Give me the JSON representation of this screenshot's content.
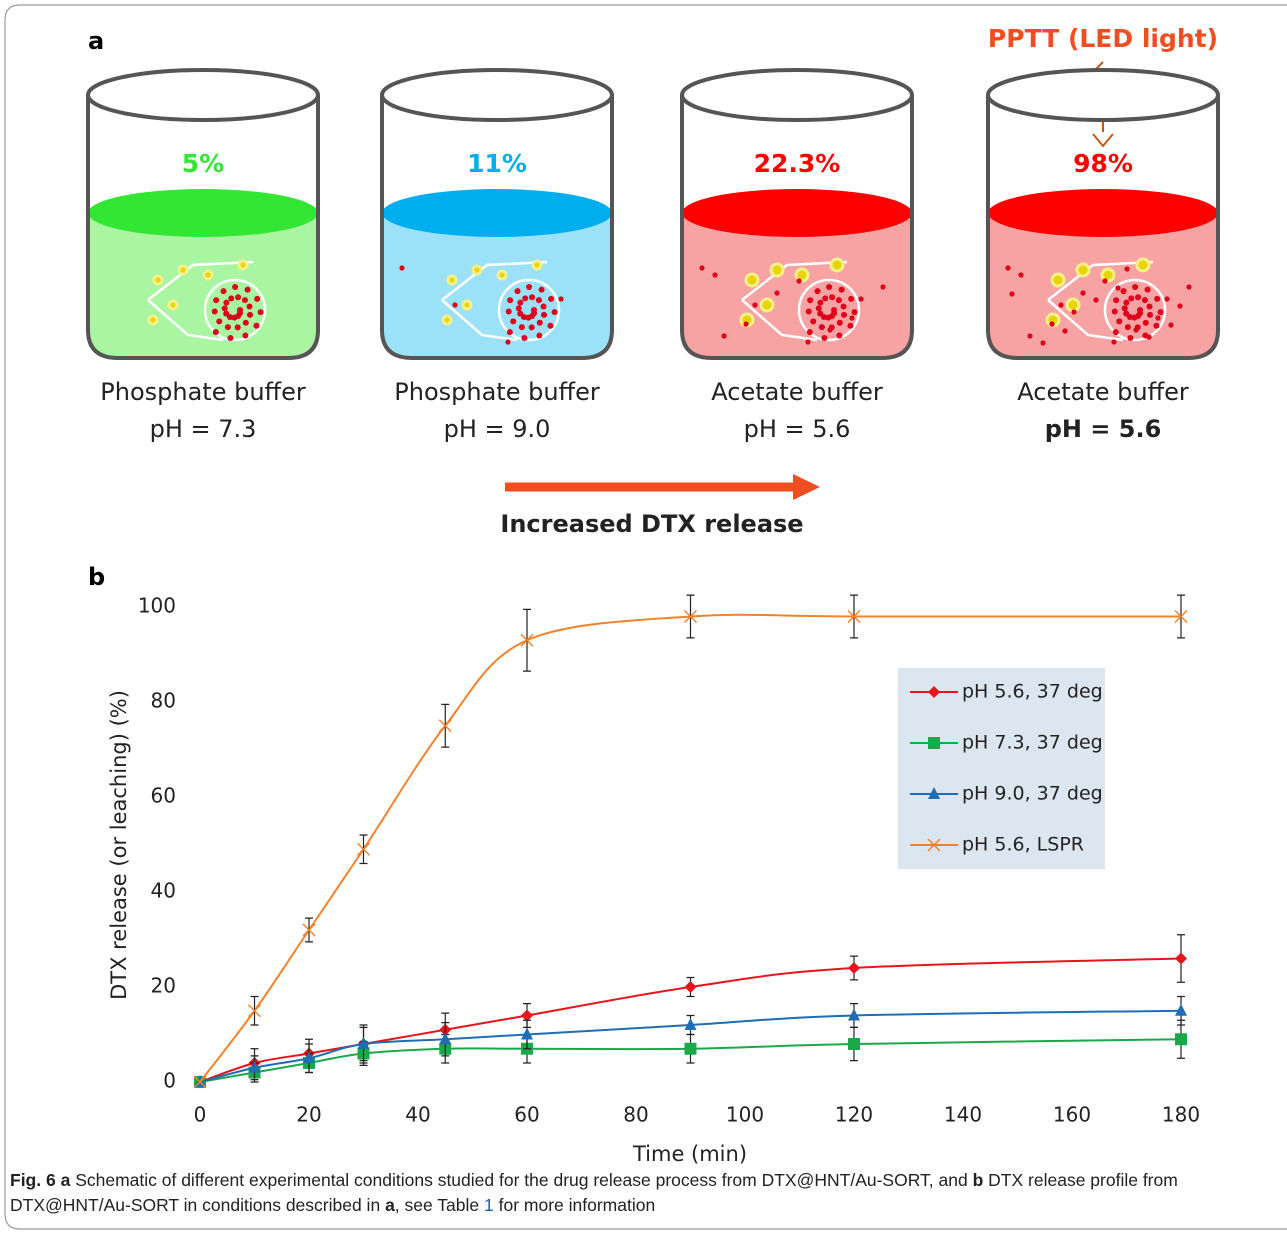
{
  "panel_a": {
    "label": "a",
    "light_label": "PPTT (LED light)",
    "beakers": [
      {
        "percent": "5%",
        "color": "#33e633",
        "liquid": "#aaf5a2",
        "buffer": "Phosphate buffer",
        "ph": "pH = 7.3"
      },
      {
        "percent": "11%",
        "color": "#00aeef",
        "liquid": "#9be2f8",
        "buffer": "Phosphate buffer",
        "ph": "pH = 9.0"
      },
      {
        "percent": "22.3%",
        "color": "#ff0000",
        "liquid": "#f7a3a3",
        "buffer": "Acetate buffer",
        "ph": "pH = 5.6"
      },
      {
        "percent": "98%",
        "color": "#ff0000",
        "liquid": "#f7a3a3",
        "buffer": "Acetate buffer",
        "ph": "pH = 5.6"
      }
    ],
    "arrow_label": "Increased DTX release"
  },
  "chart_data": {
    "type": "line",
    "label": "b",
    "x_label": "Time (min)",
    "y_label": "DTX release (or leaching) (%)",
    "x": [
      0,
      10,
      20,
      30,
      45,
      60,
      90,
      120,
      180
    ],
    "xlim": [
      0,
      180
    ],
    "xticks": [
      0,
      20,
      40,
      60,
      80,
      100,
      120,
      140,
      160,
      180
    ],
    "ylim": [
      0,
      100
    ],
    "yticks": [
      0,
      20,
      40,
      60,
      80,
      100
    ],
    "legend": "upper right",
    "grid": false,
    "series": [
      {
        "name": "pH 5.6, 37 deg",
        "color": "#e8141c",
        "marker": "diamond",
        "values": [
          0,
          4,
          6,
          8,
          11,
          14,
          20,
          24,
          26
        ],
        "errors": [
          0,
          3,
          3,
          4,
          3.5,
          2.5,
          2,
          2.5,
          5
        ]
      },
      {
        "name": "pH 7.3, 37 deg",
        "color": "#1aa94a",
        "marker": "square",
        "values": [
          0,
          2,
          4,
          6,
          7,
          7,
          7,
          8,
          9
        ],
        "errors": [
          0,
          2,
          2,
          2.5,
          3,
          3,
          3,
          3.5,
          4
        ]
      },
      {
        "name": "pH 9.0, 37 deg",
        "color": "#1f6db5",
        "marker": "triangle",
        "values": [
          0,
          3,
          5,
          8,
          9,
          10,
          12,
          14,
          15
        ],
        "errors": [
          0,
          2.5,
          3,
          3.5,
          3.5,
          3,
          2,
          2.5,
          3
        ]
      },
      {
        "name": "pH 5.6, LSPR",
        "color": "#f5822a",
        "marker": "x",
        "values": [
          0,
          15,
          32,
          49,
          75,
          93,
          98,
          98,
          98
        ],
        "errors": [
          0,
          3,
          2.5,
          3,
          4.5,
          6.5,
          4.5,
          4.5,
          4.5
        ]
      }
    ]
  },
  "caption": {
    "fig": "Fig. 6",
    "a": "a",
    "text1": "Schematic of different experimental conditions studied for the drug release process from DTX@HNT/Au-SORT, and",
    "b": "b",
    "text2": "DTX release profile from DTX@HNT/Au-SORT in conditions described in",
    "a2": "a",
    "text3": ", see Table",
    "table": "1",
    "text4": "for more information"
  }
}
